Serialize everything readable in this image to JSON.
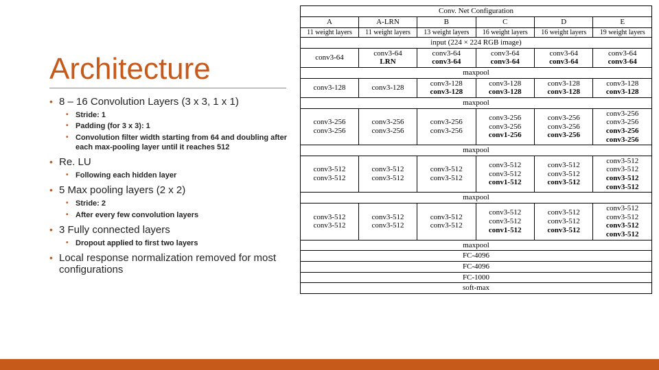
{
  "title": "Architecture",
  "bullets": {
    "b1": "8 – 16 Convolution Layers (3 x 3, 1 x 1)",
    "b1s1": "Stride: 1",
    "b1s2": "Padding (for 3 x 3): 1",
    "b1s3": "Convolution filter width starting from 64 and doubling after each max-pooling layer until it reaches 512",
    "b2": "Re. LU",
    "b2s1": "Following each hidden layer",
    "b3": "5 Max pooling layers (2 x 2)",
    "b3s1": "Stride: 2",
    "b3s2": "After every few convolution layers",
    "b4": "3 Fully connected layers",
    "b4s1": "Dropout applied to first two layers",
    "b5": "Local response normalization removed for most configurations"
  },
  "table": {
    "header": "Conv. Net Configuration",
    "cols": [
      "A",
      "A-LRN",
      "B",
      "C",
      "D",
      "E"
    ],
    "weights": [
      "11 weight layers",
      "11 weight layers",
      "13 weight layers",
      "16 weight layers",
      "16 weight layers",
      "19 weight layers"
    ],
    "input": "input (224 × 224 RGB image)",
    "maxpool": "maxpool",
    "fc1": "FC-4096",
    "fc2": "FC-4096",
    "fc3": "FC-1000",
    "softmax": "soft-max",
    "g1": {
      "a": [
        "conv3-64"
      ],
      "al": [
        "conv3-64",
        "LRN"
      ],
      "b": [
        "conv3-64",
        "conv3-64"
      ],
      "c": [
        "conv3-64",
        "conv3-64"
      ],
      "d": [
        "conv3-64",
        "conv3-64"
      ],
      "e": [
        "conv3-64",
        "conv3-64"
      ]
    },
    "g2": {
      "a": [
        "conv3-128"
      ],
      "al": [
        "conv3-128"
      ],
      "b": [
        "conv3-128",
        "conv3-128"
      ],
      "c": [
        "conv3-128",
        "conv3-128"
      ],
      "d": [
        "conv3-128",
        "conv3-128"
      ],
      "e": [
        "conv3-128",
        "conv3-128"
      ]
    },
    "g3": {
      "a": [
        "conv3-256",
        "conv3-256"
      ],
      "al": [
        "conv3-256",
        "conv3-256"
      ],
      "b": [
        "conv3-256",
        "conv3-256"
      ],
      "c": [
        "conv3-256",
        "conv3-256",
        "conv1-256"
      ],
      "d": [
        "conv3-256",
        "conv3-256",
        "conv3-256"
      ],
      "e": [
        "conv3-256",
        "conv3-256",
        "conv3-256",
        "conv3-256"
      ]
    },
    "g4": {
      "a": [
        "conv3-512",
        "conv3-512"
      ],
      "al": [
        "conv3-512",
        "conv3-512"
      ],
      "b": [
        "conv3-512",
        "conv3-512"
      ],
      "c": [
        "conv3-512",
        "conv3-512",
        "conv1-512"
      ],
      "d": [
        "conv3-512",
        "conv3-512",
        "conv3-512"
      ],
      "e": [
        "conv3-512",
        "conv3-512",
        "conv3-512",
        "conv3-512"
      ]
    },
    "g5": {
      "a": [
        "conv3-512",
        "conv3-512"
      ],
      "al": [
        "conv3-512",
        "conv3-512"
      ],
      "b": [
        "conv3-512",
        "conv3-512"
      ],
      "c": [
        "conv3-512",
        "conv3-512",
        "conv1-512"
      ],
      "d": [
        "conv3-512",
        "conv3-512",
        "conv3-512"
      ],
      "e": [
        "conv3-512",
        "conv3-512",
        "conv3-512",
        "conv3-512"
      ]
    }
  },
  "style": {
    "accent": "#c55a1b",
    "text": "#222222",
    "border": "#000000",
    "bg": "#ffffff"
  }
}
